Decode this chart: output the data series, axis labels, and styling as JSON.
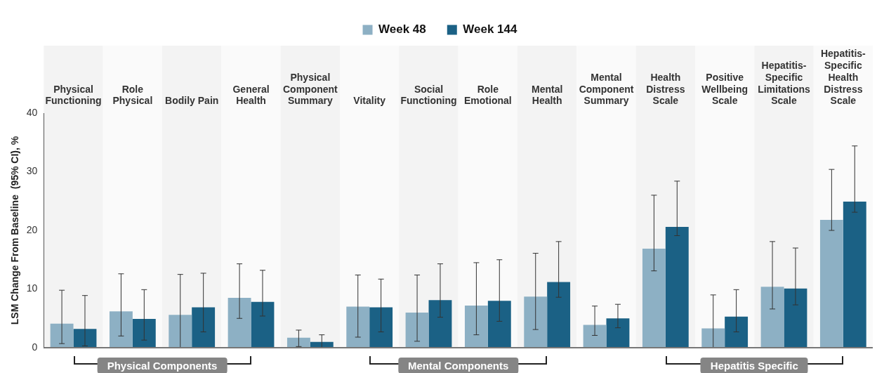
{
  "chart_data": {
    "type": "bar",
    "categories": [
      "Physical Functioning",
      "Role Physical",
      "Bodily Pain",
      "General Health",
      "Physical Component Summary",
      "Vitality",
      "Social Functioning",
      "Role Emotional",
      "Mental Health",
      "Mental Component Summary",
      "Health Distress Scale",
      "Positive Wellbeing Scale",
      "Hepatitis-Specific Limitations Scale",
      "Hepatitis-Specific Health Distress Scale"
    ],
    "series": [
      {
        "name": "Week 48",
        "color": "#8db0c4",
        "values": [
          4.1,
          6.2,
          5.6,
          8.5,
          1.7,
          7.0,
          6.0,
          7.2,
          8.7,
          3.9,
          16.9,
          3.3,
          10.4,
          21.8
        ],
        "errors": [
          [
            0.7,
            9.8
          ],
          [
            2.0,
            12.6
          ],
          [
            0.0,
            12.5
          ],
          [
            5.0,
            14.3
          ],
          [
            0.2,
            3.0
          ],
          [
            1.8,
            12.4
          ],
          [
            1.1,
            12.4
          ],
          [
            2.2,
            14.5
          ],
          [
            3.1,
            16.1
          ],
          [
            2.1,
            7.1
          ],
          [
            13.1,
            26.0
          ],
          [
            0.0,
            9.0
          ],
          [
            6.6,
            18.1
          ],
          [
            20.0,
            30.4
          ]
        ]
      },
      {
        "name": "Week 144",
        "color": "#1b6185",
        "values": [
          3.2,
          4.9,
          6.9,
          7.8,
          1.0,
          6.9,
          8.1,
          8.0,
          11.2,
          5.0,
          20.6,
          5.3,
          10.1,
          24.9
        ],
        "errors": [
          [
            0.3,
            8.9
          ],
          [
            1.3,
            9.9
          ],
          [
            2.7,
            12.7
          ],
          [
            5.4,
            13.2
          ],
          [
            0.0,
            2.2
          ],
          [
            2.7,
            11.7
          ],
          [
            5.2,
            14.3
          ],
          [
            4.5,
            15.0
          ],
          [
            8.6,
            18.1
          ],
          [
            3.4,
            7.4
          ],
          [
            19.1,
            28.4
          ],
          [
            2.7,
            9.9
          ],
          [
            7.3,
            17.0
          ],
          [
            23.1,
            34.4
          ]
        ]
      }
    ],
    "ylabel": "LSM Change From Baseline  (95% CI), %",
    "ylim": [
      0,
      40
    ],
    "yticks": [
      0,
      10,
      20,
      30,
      40
    ],
    "legend": "top",
    "annotations": [
      "Physical Components",
      "Mental Components",
      "Hepatitis Specific"
    ]
  }
}
